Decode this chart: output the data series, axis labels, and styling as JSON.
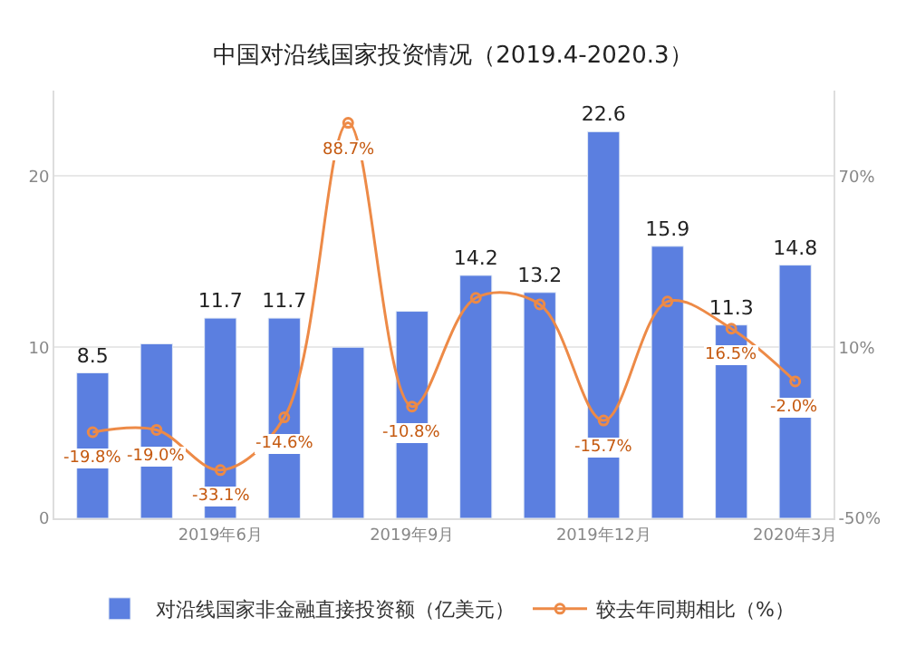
{
  "chart_data": {
    "type": "bar",
    "title": "中国对沿线国家投资情况（2019.4-2020.3）",
    "categories": [
      null,
      null,
      "2019年6月",
      null,
      null,
      "2019年9月",
      null,
      null,
      "2019年12月",
      null,
      null,
      "2020年3月"
    ],
    "series": [
      {
        "name": "对沿线国家非金融直接投资额（亿美元）",
        "color": "#5b7fe0",
        "values": [
          8.5,
          10.2,
          11.7,
          11.7,
          10.0,
          12.1,
          14.2,
          13.2,
          22.6,
          15.9,
          11.3,
          14.8
        ],
        "value_labels": [
          "8.5",
          null,
          "11.7",
          "11.7",
          null,
          null,
          "14.2",
          "13.2",
          "22.6",
          "15.9",
          "11.3",
          "14.8"
        ]
      },
      {
        "name": "较去年同期相比（%）",
        "type": "line",
        "axis": "y2",
        "color": "#ed8a47",
        "marker": "circle",
        "values": [
          -19.8,
          -19.0,
          -33.1,
          -14.6,
          88.7,
          -10.8,
          27.3,
          25.0,
          -15.7,
          26.0,
          16.5,
          -2.0
        ],
        "value_labels": [
          "-19.8%",
          "-19.0%",
          "-33.1%",
          "-14.6%",
          "88.7%",
          "-10.8%",
          null,
          null,
          "-15.7%",
          null,
          "16.5%",
          "-2.0%"
        ]
      }
    ],
    "ylim": [
      0,
      25
    ],
    "yticks": [
      0,
      10,
      20
    ],
    "y2lim": [
      -50,
      100
    ],
    "y2ticks": [
      {
        "value": -50,
        "label": "-50%"
      },
      {
        "value": 10,
        "label": "10%"
      },
      {
        "value": 70,
        "label": "70%"
      }
    ],
    "grid": "y",
    "legend": "bottom"
  }
}
